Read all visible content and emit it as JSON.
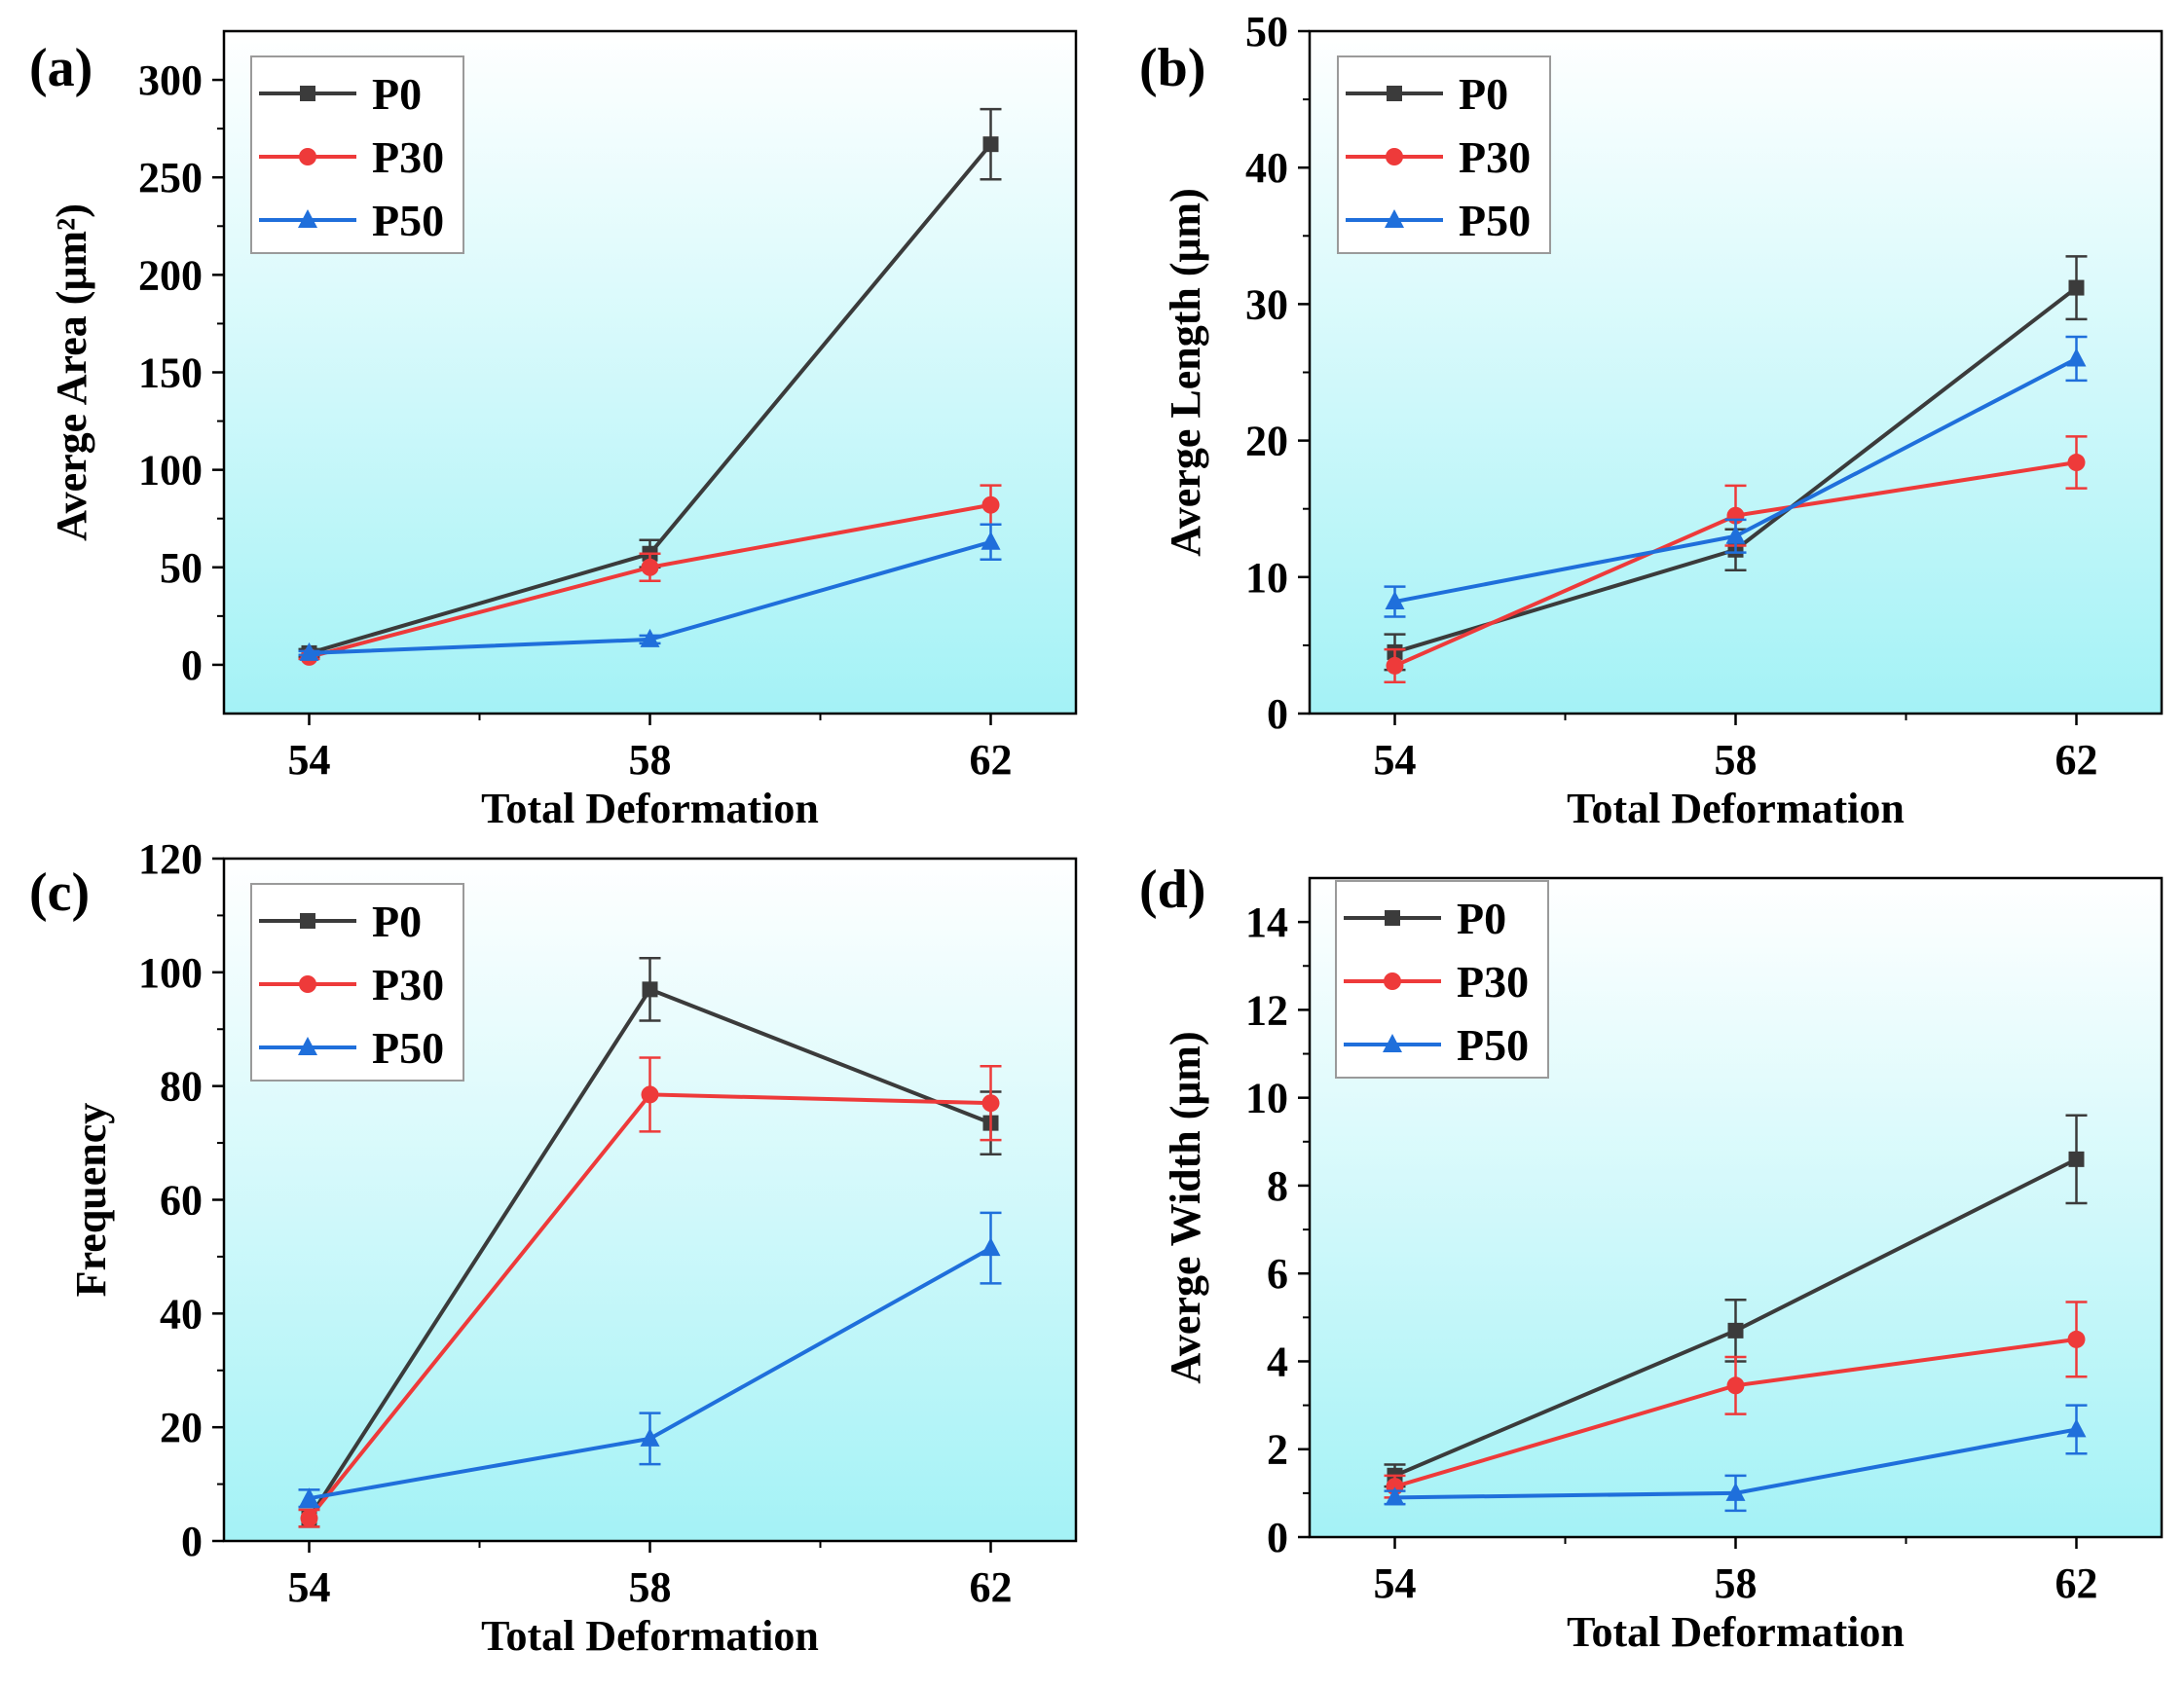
{
  "colors": {
    "P0": "#3b3b3b",
    "P30": "#ee3a3a",
    "P50": "#1f6fdb",
    "bg_top": "#ffffff",
    "bg_bottom": "#a4f2f6"
  },
  "chart_data": [
    {
      "type": "line",
      "panel_label": "(a)",
      "xlabel": "Total Deformation",
      "ylabel": "Averge Area (μm²)",
      "x": [
        54,
        58,
        62
      ],
      "xlim": [
        53,
        63
      ],
      "ylim": [
        -25,
        325
      ],
      "yticks": [
        0,
        50,
        100,
        150,
        200,
        250,
        300
      ],
      "legend": "top-left",
      "series": [
        {
          "name": "P0",
          "marker": "square",
          "values": [
            6,
            57,
            267
          ],
          "errors": [
            2,
            7,
            18
          ]
        },
        {
          "name": "P30",
          "marker": "circle",
          "values": [
            4,
            50,
            82
          ],
          "errors": [
            1,
            7,
            10
          ]
        },
        {
          "name": "P50",
          "marker": "triangle",
          "values": [
            6,
            13,
            63
          ],
          "errors": [
            1,
            2,
            9
          ]
        }
      ]
    },
    {
      "type": "line",
      "panel_label": "(b)",
      "xlabel": "Total Deformation",
      "ylabel": "Averge Length (μm)",
      "x": [
        54,
        58,
        62
      ],
      "xlim": [
        53,
        63
      ],
      "ylim": [
        0,
        50
      ],
      "yticks": [
        0,
        10,
        20,
        30,
        40,
        50
      ],
      "legend": "top-left",
      "series": [
        {
          "name": "P0",
          "marker": "square",
          "values": [
            4.5,
            12,
            31.2
          ],
          "errors": [
            1.3,
            1.5,
            2.3
          ]
        },
        {
          "name": "P30",
          "marker": "circle",
          "values": [
            3.5,
            14.5,
            18.4
          ],
          "errors": [
            1.2,
            2.2,
            1.9
          ]
        },
        {
          "name": "P50",
          "marker": "triangle",
          "values": [
            8.2,
            13,
            26
          ],
          "errors": [
            1.1,
            1.2,
            1.6
          ]
        }
      ]
    },
    {
      "type": "line",
      "panel_label": "(c)",
      "xlabel": "Total Deformation",
      "ylabel": "Frequency",
      "x": [
        54,
        58,
        62
      ],
      "xlim": [
        53,
        63
      ],
      "ylim": [
        0,
        120
      ],
      "yticks": [
        0,
        20,
        40,
        60,
        80,
        100,
        120
      ],
      "legend": "top-left",
      "series": [
        {
          "name": "P0",
          "marker": "square",
          "values": [
            4,
            97,
            73.5
          ],
          "errors": [
            1.5,
            5.5,
            5.5
          ]
        },
        {
          "name": "P30",
          "marker": "circle",
          "values": [
            4,
            78.5,
            77
          ],
          "errors": [
            1.5,
            6.5,
            6.5
          ]
        },
        {
          "name": "P50",
          "marker": "triangle",
          "values": [
            7.5,
            18,
            51.5
          ],
          "errors": [
            1.5,
            4.5,
            6.2
          ]
        }
      ]
    },
    {
      "type": "line",
      "panel_label": "(d)",
      "xlabel": "Total Deformation",
      "ylabel": "Averge Width (μm)",
      "x": [
        54,
        58,
        62
      ],
      "xlim": [
        53,
        63
      ],
      "ylim": [
        0,
        15
      ],
      "yticks": [
        0,
        2,
        4,
        6,
        8,
        10,
        12,
        14
      ],
      "legend": "top-left",
      "series": [
        {
          "name": "P0",
          "marker": "square",
          "values": [
            1.4,
            4.7,
            8.6
          ],
          "errors": [
            0.25,
            0.7,
            1.0
          ]
        },
        {
          "name": "P30",
          "marker": "circle",
          "values": [
            1.15,
            3.45,
            4.5
          ],
          "errors": [
            0.25,
            0.65,
            0.85
          ]
        },
        {
          "name": "P50",
          "marker": "triangle",
          "values": [
            0.9,
            1.0,
            2.45
          ],
          "errors": [
            0.15,
            0.4,
            0.55
          ]
        }
      ]
    }
  ]
}
